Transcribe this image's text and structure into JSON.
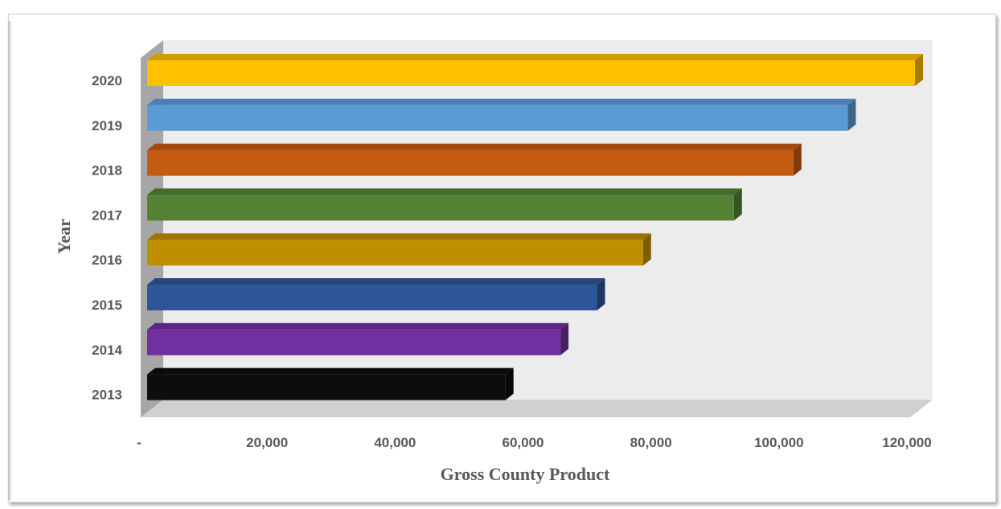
{
  "chart_data": {
    "type": "bar",
    "orientation": "horizontal",
    "style": "3d",
    "categories": [
      "2013",
      "2014",
      "2015",
      "2016",
      "2017",
      "2018",
      "2019",
      "2020"
    ],
    "values": [
      56000,
      64600,
      70300,
      77500,
      91700,
      101000,
      109500,
      120000
    ],
    "colors": [
      "#0d0d0d",
      "#7030a0",
      "#2e5597",
      "#bf8f00",
      "#548235",
      "#c55a11",
      "#5b9bd5",
      "#ffc000"
    ],
    "xlabel": "Gross County Product",
    "ylabel": "Year",
    "xlim": [
      0,
      120000
    ],
    "xticks": [
      "-",
      "20,000",
      "40,000",
      "60,000",
      "80,000",
      "100,000",
      "120,000"
    ],
    "grid": false,
    "legend": "none"
  }
}
